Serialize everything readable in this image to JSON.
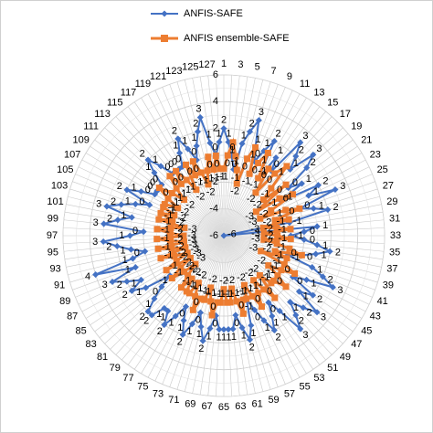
{
  "chart_data": {
    "type": "radar",
    "categories": [
      "1",
      null,
      "3",
      null,
      "5",
      null,
      "7",
      null,
      "9",
      null,
      "11",
      null,
      "13",
      null,
      "15",
      null,
      "17",
      null,
      "19",
      null,
      "21",
      null,
      "23",
      null,
      "25",
      null,
      "27",
      null,
      "29",
      null,
      "31",
      null,
      "33",
      null,
      "35",
      null,
      "37",
      null,
      "39",
      null,
      "41",
      null,
      "43",
      null,
      "45",
      null,
      "47",
      null,
      "49",
      null,
      "51",
      null,
      "53",
      null,
      "55",
      null,
      "57",
      null,
      "59",
      null,
      "61",
      null,
      "63",
      null,
      "65",
      null,
      "67",
      null,
      "69",
      null,
      "71",
      null,
      "73",
      null,
      "75",
      null,
      "77",
      null,
      "79",
      null,
      "81",
      null,
      "83",
      null,
      "85",
      null,
      "87",
      null,
      "89",
      null,
      "91",
      null,
      "93",
      null,
      "95",
      null,
      "97",
      null,
      "99",
      null,
      "101",
      null,
      "103",
      null,
      "105",
      null,
      "107",
      null,
      "109",
      null,
      "111",
      null,
      "113",
      null,
      "115",
      null,
      "117",
      null,
      "119",
      null,
      "121",
      null,
      "123",
      null,
      "125",
      null,
      "127",
      null
    ],
    "series": [
      {
        "name": "ANFIS-SAFE",
        "color": "#4472c4",
        "values": [
          2,
          1,
          0,
          -1,
          1,
          2,
          3,
          1,
          0,
          1,
          2,
          -1,
          1,
          0,
          3,
          2,
          1,
          3,
          2,
          0,
          1,
          -1,
          2,
          1,
          3,
          0,
          1,
          2,
          -1,
          -6,
          1,
          0,
          -1,
          0,
          1,
          2,
          1,
          0,
          -1,
          1,
          2,
          3,
          1,
          0,
          2,
          1,
          3,
          2,
          1,
          2,
          3,
          1,
          0,
          1,
          2,
          1,
          0,
          -1,
          1,
          2,
          1,
          0,
          1,
          1,
          1,
          1,
          0,
          1,
          2,
          1,
          0,
          1,
          2,
          1,
          0,
          1,
          2,
          1,
          1,
          2,
          2,
          1,
          0,
          -1,
          1,
          2,
          1,
          2,
          3,
          1,
          4,
          1,
          0,
          1,
          2,
          3,
          1,
          0,
          3,
          2,
          1,
          3,
          2,
          1,
          0,
          2,
          1,
          0,
          0,
          0,
          0,
          1,
          2,
          1,
          0,
          0,
          0,
          0,
          1,
          2,
          1,
          0,
          1,
          2,
          3,
          1,
          0,
          1
        ]
      },
      {
        "name": "ANFIS ensemble-SAFE",
        "color": "#ed7d31",
        "values": [
          -1,
          0,
          1,
          0,
          -1,
          -2,
          0,
          1,
          -1,
          0,
          1,
          -1,
          0,
          -2,
          0,
          1,
          -1,
          -2,
          0,
          -3,
          -1,
          0,
          -2,
          -3,
          -1,
          0,
          -2,
          -1,
          -3,
          -2,
          -1,
          -3,
          -2,
          -1,
          -3,
          -2,
          -1,
          0,
          -2,
          -1,
          -3,
          -1,
          0,
          -1,
          -2,
          -1,
          0,
          -1,
          -1,
          -2,
          0,
          -1,
          -2,
          -1,
          0,
          -1,
          -2,
          -1,
          -1,
          0,
          -1,
          -2,
          -1,
          -1,
          -2,
          -1,
          -1,
          0,
          -1,
          -2,
          -1,
          -1,
          0,
          -1,
          -2,
          -1,
          -1,
          -2,
          -1,
          -2,
          -3,
          -2,
          -1,
          -2,
          -3,
          -1,
          -2,
          -3,
          -2,
          -1,
          -3,
          -2,
          -1,
          -3,
          -2,
          -1,
          -3,
          -2,
          -1,
          -2,
          -3,
          -1,
          -2,
          -1,
          -2,
          -1,
          -1,
          -2,
          -1,
          0,
          -1,
          -2,
          -1,
          0,
          -1,
          0,
          -1,
          -2,
          0,
          -1,
          0,
          -1,
          -2,
          -1,
          0,
          -1,
          0,
          -1
        ]
      }
    ],
    "rlim": [
      -6,
      6
    ],
    "rticks": [
      -6,
      -4,
      -2,
      0,
      2,
      4,
      6
    ],
    "legend": "top"
  }
}
